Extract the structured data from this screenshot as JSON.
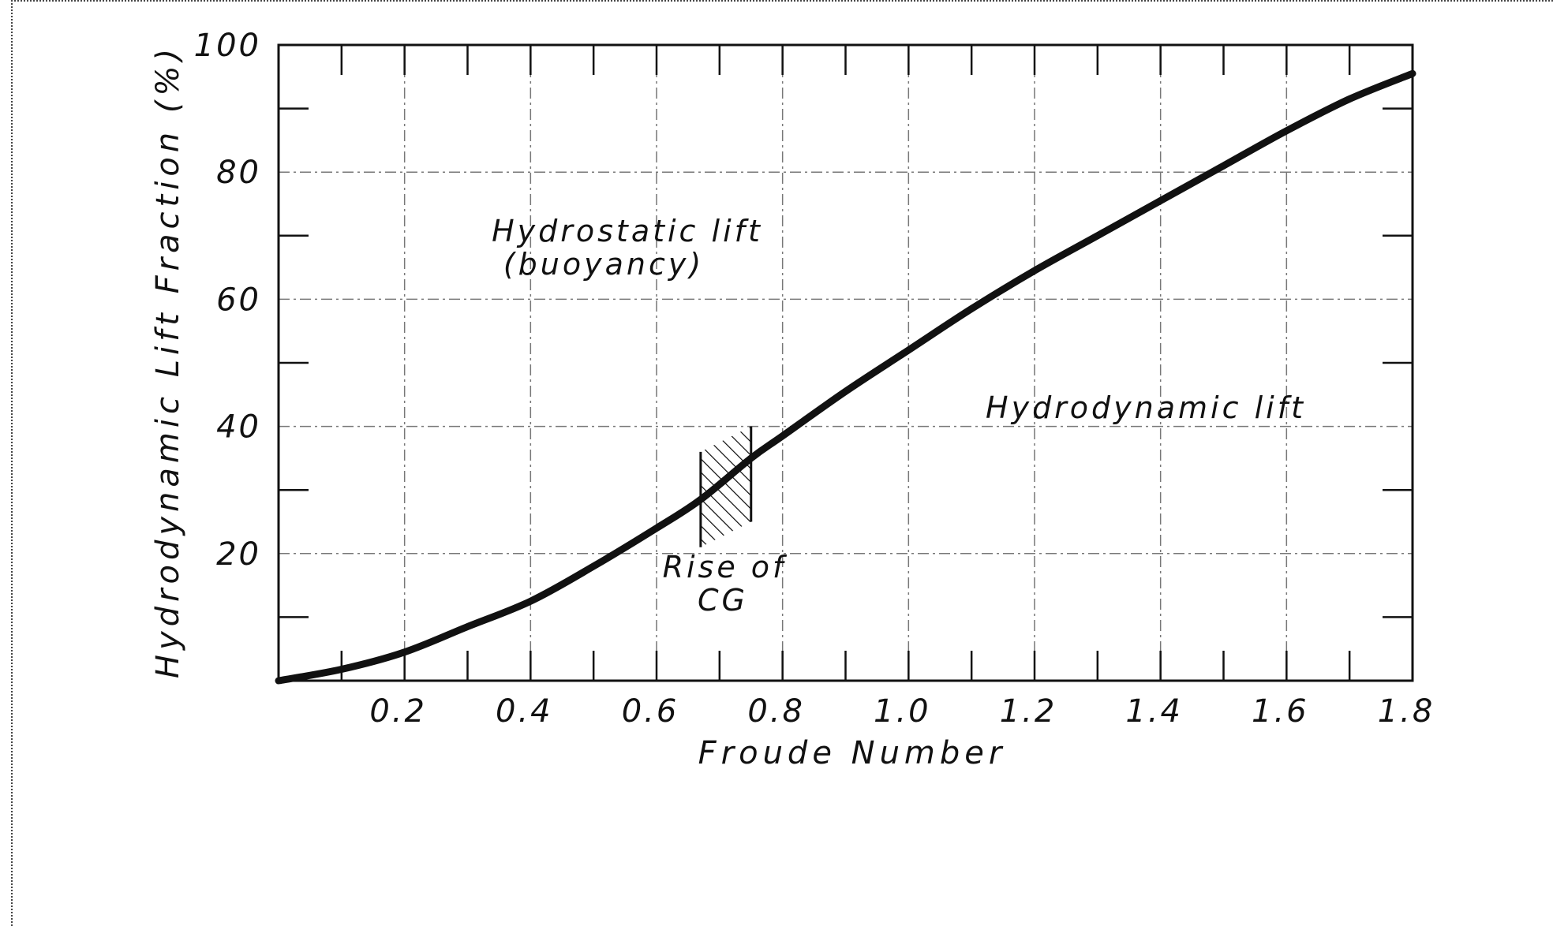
{
  "chart_data": {
    "type": "line",
    "title": "",
    "xlabel": "Froude Number",
    "ylabel": "Hydrodynamic Lift Fraction (%)",
    "xlim": [
      0,
      1.8
    ],
    "ylim": [
      0,
      100
    ],
    "x_ticks": [
      0.2,
      0.4,
      0.6,
      0.8,
      1.0,
      1.2,
      1.4,
      1.6,
      1.8
    ],
    "x_tick_labels": [
      "0.2",
      "0.4",
      "0.6",
      "0.8",
      "1.0",
      "1.2",
      "1.4",
      "1.6",
      "1.8"
    ],
    "y_ticks": [
      20,
      40,
      60,
      80,
      100
    ],
    "y_tick_labels": [
      "20",
      "40",
      "60",
      "80",
      "100"
    ],
    "grid": true,
    "series": [
      {
        "x": [
          0,
          0.1,
          0.2,
          0.3,
          0.4,
          0.5,
          0.6,
          0.67,
          0.75,
          0.8,
          0.9,
          1.0,
          1.1,
          1.2,
          1.3,
          1.4,
          1.5,
          1.6,
          1.7,
          1.8
        ],
        "y": [
          0,
          1.8,
          4.5,
          8.5,
          12.5,
          18,
          24,
          28.5,
          35,
          38.5,
          45.5,
          52,
          58.5,
          64.5,
          70,
          75.5,
          81,
          86.5,
          91.5,
          95.5
        ]
      }
    ],
    "hatched_region": {
      "x_start": 0.67,
      "x_end": 0.75,
      "y_bottom_left": 21,
      "y_top_left": 36,
      "y_bottom_right": 25,
      "y_top_right": 40
    },
    "annotations": {
      "hydrostatic_line1": "Hydrostatic lift",
      "hydrostatic_line2": "(buoyancy)",
      "hydrodynamic": "Hydrodynamic lift",
      "rise_line1": "Rise of",
      "rise_line2": "CG"
    }
  }
}
